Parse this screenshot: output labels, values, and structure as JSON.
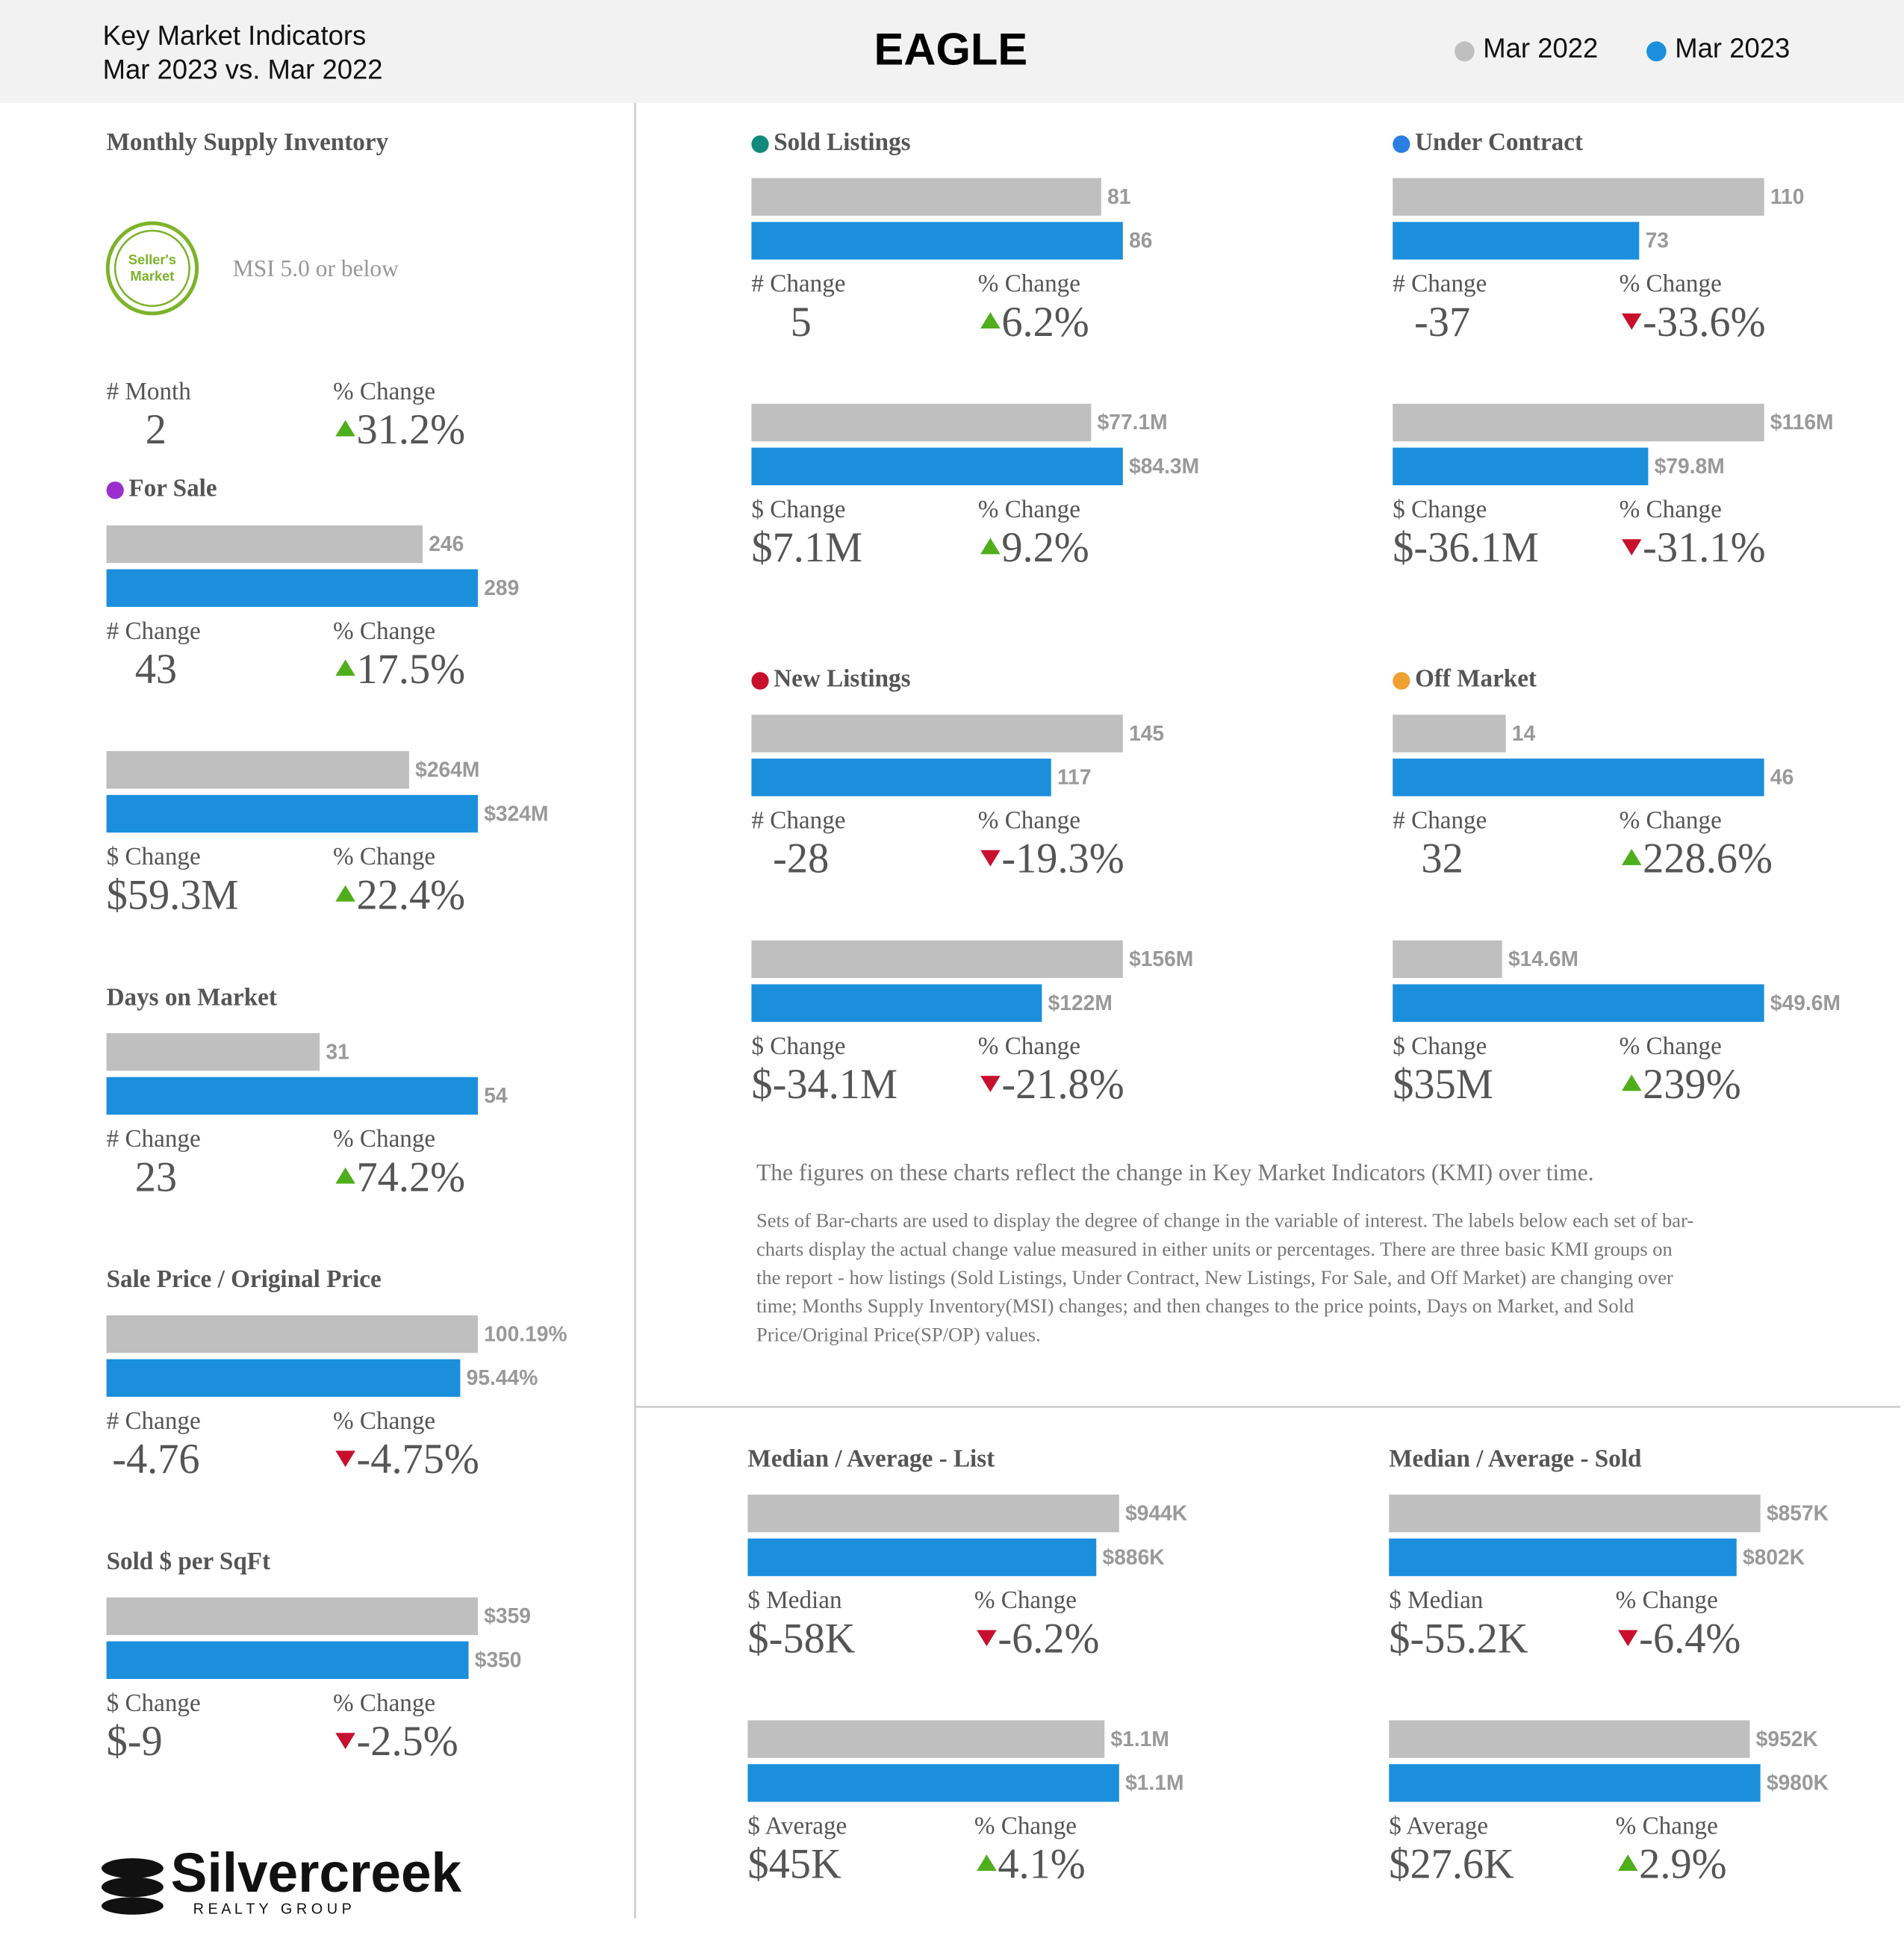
{
  "header": {
    "title": "Key Market Indicators",
    "subtitle": "Mar 2023 vs. Mar 2022",
    "area": "EAGLE",
    "legend": [
      {
        "name": "Mar 2022",
        "color": "#bfbfbf"
      },
      {
        "name": "Mar 2023",
        "color": "#1b8fdc"
      }
    ]
  },
  "msi": {
    "title": "Monthly Supply Inventory",
    "badge": [
      "Seller's",
      "Market"
    ],
    "note": "MSI 5.0 or below",
    "stats": [
      {
        "label": "# Month",
        "value": "2"
      },
      {
        "label": "% Change",
        "value": "31.2%",
        "direction": "up"
      }
    ]
  },
  "panels": [
    {
      "title": "For Sale",
      "dot": "#9b2fce",
      "groups": [
        {
          "values": [
            246,
            289
          ],
          "stats": [
            {
              "label": "# Change",
              "value": "43"
            },
            {
              "label": "% Change",
              "value": "17.5%",
              "direction": "up"
            }
          ]
        },
        {
          "values": [
            264000000,
            324000000
          ],
          "value_labels": [
            "$264M",
            "$324M"
          ],
          "stats": [
            {
              "label": "$ Change",
              "value": "$59.3M"
            },
            {
              "label": "% Change",
              "value": "22.4%",
              "direction": "up"
            }
          ]
        }
      ]
    },
    {
      "title": "Days on Market",
      "groups": [
        {
          "values": [
            31,
            54
          ],
          "stats": [
            {
              "label": "# Change",
              "value": "23"
            },
            {
              "label": "% Change",
              "value": "74.2%",
              "direction": "up"
            }
          ]
        }
      ]
    },
    {
      "title": "Sale Price / Original Price",
      "groups": [
        {
          "values": [
            100.19,
            95.44
          ],
          "value_labels": [
            "100.19%",
            "95.44%"
          ],
          "stats": [
            {
              "label": "# Change",
              "value": "-4.76"
            },
            {
              "label": "% Change",
              "value": "-4.75%",
              "direction": "down"
            }
          ]
        }
      ]
    },
    {
      "title": "Sold $ per SqFt",
      "groups": [
        {
          "values": [
            359,
            350
          ],
          "value_labels": [
            "$359",
            "$350"
          ],
          "stats": [
            {
              "label": "$ Change",
              "value": "$-9"
            },
            {
              "label": "% Change",
              "value": "-2.5%",
              "direction": "down"
            }
          ]
        }
      ]
    },
    {
      "title": "Sold Listings",
      "dot": "#12897a",
      "groups": [
        {
          "values": [
            81,
            86
          ],
          "stats": [
            {
              "label": "# Change",
              "value": "5"
            },
            {
              "label": "% Change",
              "value": "6.2%",
              "direction": "up"
            }
          ]
        },
        {
          "values": [
            77100000,
            84300000
          ],
          "value_labels": [
            "$77.1M",
            "$84.3M"
          ],
          "stats": [
            {
              "label": "$ Change",
              "value": "$7.1M"
            },
            {
              "label": "% Change",
              "value": "9.2%",
              "direction": "up"
            }
          ]
        }
      ]
    },
    {
      "title": "Under Contract",
      "dot": "#2a7de1",
      "groups": [
        {
          "values": [
            110,
            73
          ],
          "stats": [
            {
              "label": "# Change",
              "value": "-37"
            },
            {
              "label": "% Change",
              "value": "-33.6%",
              "direction": "down"
            }
          ]
        },
        {
          "values": [
            116000000,
            79800000
          ],
          "value_labels": [
            "$116M",
            "$79.8M"
          ],
          "stats": [
            {
              "label": "$ Change",
              "value": "$-36.1M"
            },
            {
              "label": "% Change",
              "value": "-31.1%",
              "direction": "down"
            }
          ]
        }
      ]
    },
    {
      "title": "New Listings",
      "dot": "#c8102e",
      "groups": [
        {
          "values": [
            145,
            117
          ],
          "stats": [
            {
              "label": "# Change",
              "value": "-28"
            },
            {
              "label": "% Change",
              "value": "-19.3%",
              "direction": "down"
            }
          ]
        },
        {
          "values": [
            156000000,
            122000000
          ],
          "value_labels": [
            "$156M",
            "$122M"
          ],
          "stats": [
            {
              "label": "$ Change",
              "value": "$-34.1M"
            },
            {
              "label": "% Change",
              "value": "-21.8%",
              "direction": "down"
            }
          ]
        }
      ]
    },
    {
      "title": "Off Market",
      "dot": "#f0a030",
      "groups": [
        {
          "values": [
            14,
            46
          ],
          "stats": [
            {
              "label": "# Change",
              "value": "32"
            },
            {
              "label": "% Change",
              "value": "228.6%",
              "direction": "up"
            }
          ]
        },
        {
          "values": [
            14600000,
            49600000
          ],
          "value_labels": [
            "$14.6M",
            "$49.6M"
          ],
          "stats": [
            {
              "label": "$ Change",
              "value": "$35M"
            },
            {
              "label": "% Change",
              "value": "239%",
              "direction": "up"
            }
          ]
        }
      ]
    },
    {
      "title": "Median / Average - List",
      "groups": [
        {
          "values": [
            944000,
            886000
          ],
          "value_labels": [
            "$944K",
            "$886K"
          ],
          "stats": [
            {
              "label": "$ Median",
              "value": "$-58K"
            },
            {
              "label": "% Change",
              "value": "-6.2%",
              "direction": "down"
            }
          ]
        },
        {
          "values": [
            1097000,
            1142000
          ],
          "value_labels": [
            "$1.1M",
            "$1.1M"
          ],
          "stats": [
            {
              "label": "$ Average",
              "value": "$45K"
            },
            {
              "label": "% Change",
              "value": "4.1%",
              "direction": "up"
            }
          ]
        }
      ]
    },
    {
      "title": "Median / Average - Sold",
      "groups": [
        {
          "values": [
            857000,
            802000
          ],
          "value_labels": [
            "$857K",
            "$802K"
          ],
          "stats": [
            {
              "label": "$ Median",
              "value": "$-55.2K"
            },
            {
              "label": "% Change",
              "value": "-6.4%",
              "direction": "down"
            }
          ]
        },
        {
          "values": [
            952000,
            980000
          ],
          "value_labels": [
            "$952K",
            "$980K"
          ],
          "stats": [
            {
              "label": "$ Average",
              "value": "$27.6K"
            },
            {
              "label": "% Change",
              "value": "2.9%",
              "direction": "up"
            }
          ]
        }
      ]
    }
  ],
  "explanation": {
    "lead": "The figures on these charts reflect the change in Key Market Indicators (KMI) over time.",
    "lines": [
      "Sets of Bar-charts are used to display the degree of change in the variable of interest. The labels below each set of bar-",
      "charts display the actual change value measured in either units or percentages. There are three basic KMI groups on",
      "the report - how listings (Sold Listings, Under Contract, New Listings, For Sale, and Off Market) are changing over",
      "time; Months Supply Inventory(MSI) changes; and then changes to the price points, Days on Market, and Sold",
      "Price/Original Price(SP/OP) values."
    ]
  },
  "logo": {
    "name": "Silvercreek",
    "tagline": "R E A L T Y   G R O U P"
  }
}
